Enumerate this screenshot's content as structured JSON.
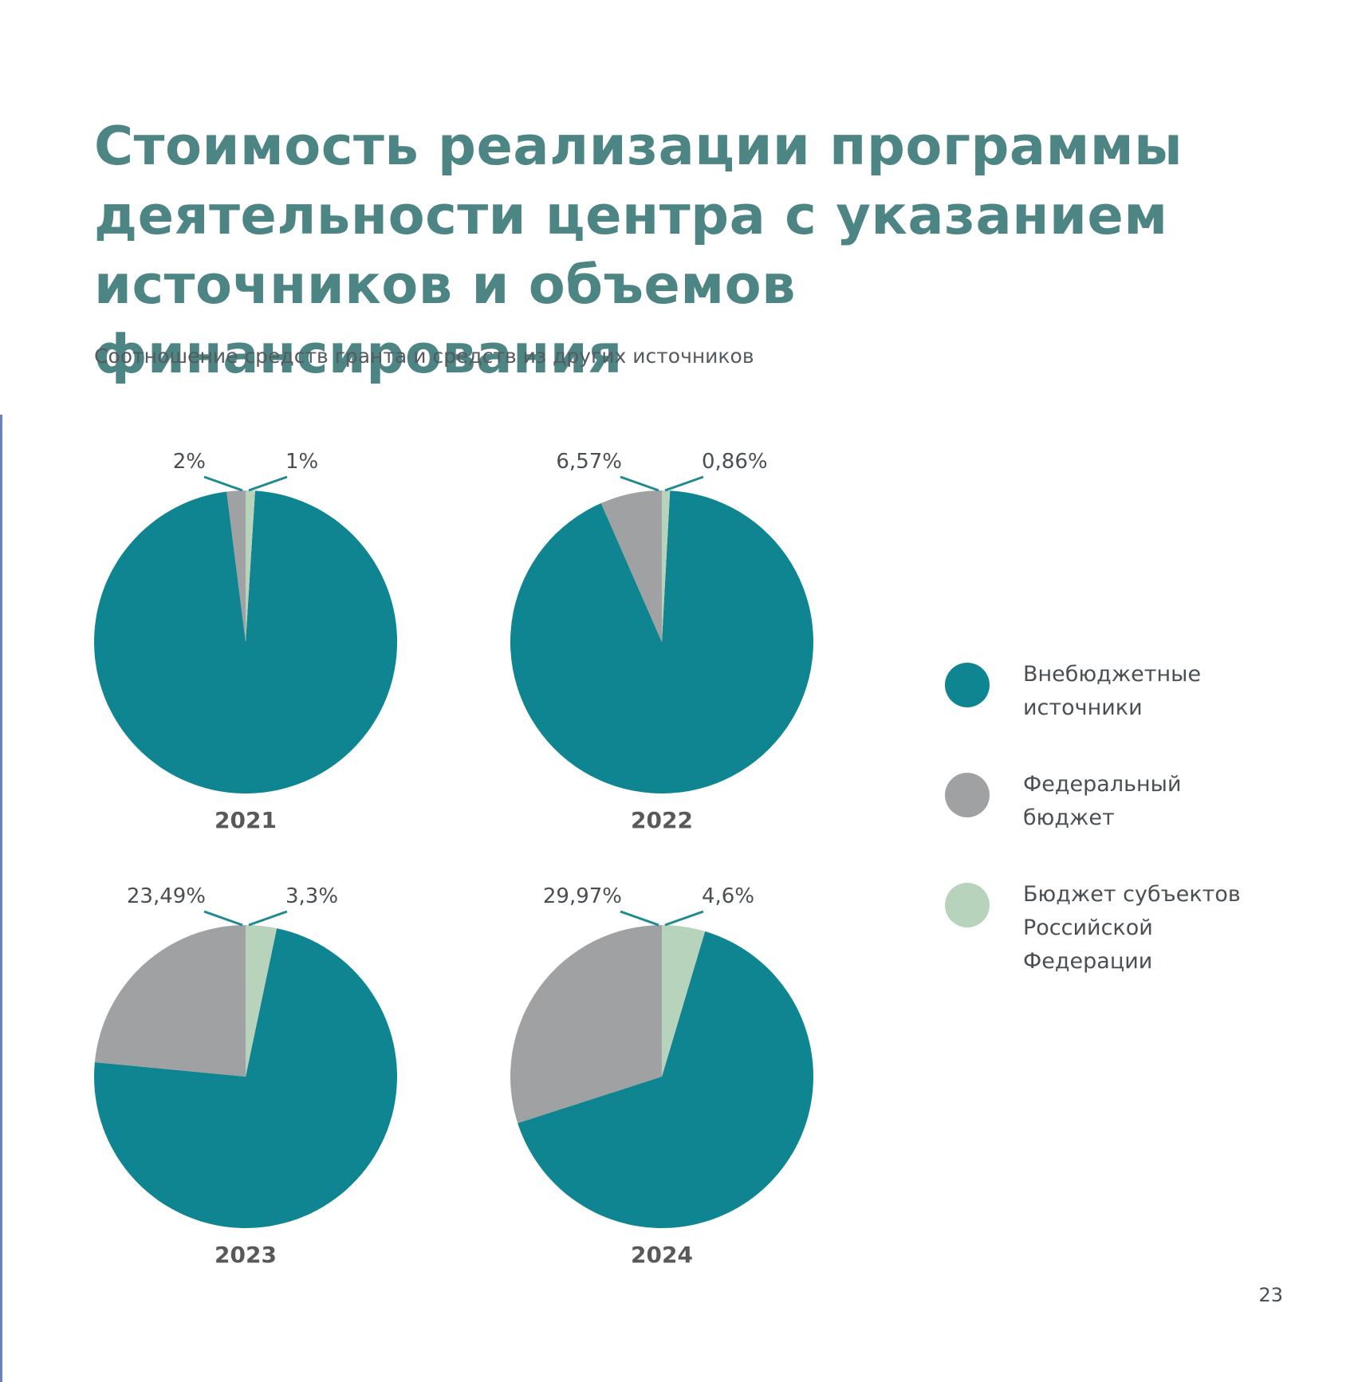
{
  "title": "Стоимость реализации программы\nдеятельности центра с указанием\nисточников и объемов финансирования",
  "subtitle": "Соотношение средств гранта и средств из других источников",
  "page_number": "23",
  "colors": {
    "title": "#4c8583",
    "extrabudgetary": "#0e8590",
    "federal": "#a0a1a3",
    "regional": "#b8d3bb",
    "leader_line": "#1f8a90",
    "year_label": "#595959"
  },
  "legend": [
    {
      "label": "Внебюджетные\nисточники",
      "color": "#0e8590"
    },
    {
      "label": "Федеральный\nбюджет",
      "color": "#a0a1a3"
    },
    {
      "label": "Бюджет субъектов\nРоссийской\nФедерации",
      "color": "#b8d3bb"
    }
  ],
  "chart_data": [
    {
      "type": "pie",
      "title": "2021",
      "labels": [
        "Внебюджетные источники",
        "Федеральный бюджет",
        "Бюджет субъектов Российской Федерации"
      ],
      "values": [
        97,
        2,
        1
      ],
      "value_labels": [
        "",
        "2%",
        "1%"
      ]
    },
    {
      "type": "pie",
      "title": "2022",
      "labels": [
        "Внебюджетные источники",
        "Федеральный бюджет",
        "Бюджет субъектов Российской Федерации"
      ],
      "values": [
        92.57,
        6.57,
        0.86
      ],
      "value_labels": [
        "",
        "6,57%",
        "0,86%"
      ]
    },
    {
      "type": "pie",
      "title": "2023",
      "labels": [
        "Внебюджетные источники",
        "Федеральный бюджет",
        "Бюджет субъектов Российской Федерации"
      ],
      "values": [
        73.21,
        23.49,
        3.3
      ],
      "value_labels": [
        "",
        "23,49%",
        "3,3%"
      ]
    },
    {
      "type": "pie",
      "title": "2024",
      "labels": [
        "Внебюджетные источники",
        "Федеральный бюджет",
        "Бюджет субъектов Российской Федерации"
      ],
      "values": [
        65.43,
        29.97,
        4.6
      ],
      "value_labels": [
        "",
        "29,97%",
        "4,6%"
      ]
    }
  ]
}
